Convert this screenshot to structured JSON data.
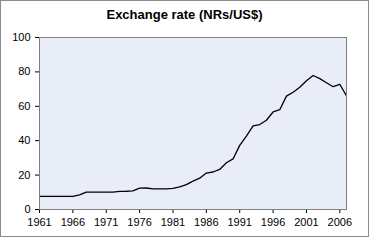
{
  "chart_data": {
    "type": "line",
    "title": "Exchange rate (NRs/US$)",
    "x": [
      1961,
      1962,
      1963,
      1964,
      1965,
      1966,
      1967,
      1968,
      1969,
      1970,
      1971,
      1972,
      1973,
      1974,
      1975,
      1976,
      1977,
      1978,
      1979,
      1980,
      1981,
      1982,
      1983,
      1984,
      1985,
      1986,
      1987,
      1988,
      1989,
      1990,
      1991,
      1992,
      1993,
      1994,
      1995,
      1996,
      1997,
      1998,
      1999,
      2000,
      2001,
      2002,
      2003,
      2004,
      2005,
      2006,
      2007
    ],
    "values": [
      7.6,
      7.6,
      7.6,
      7.6,
      7.6,
      7.6,
      8.5,
      10.1,
      10.1,
      10.1,
      10.1,
      10.1,
      10.5,
      10.6,
      10.8,
      12.4,
      12.5,
      12.0,
      12.0,
      12.0,
      12.3,
      13.2,
      14.5,
      16.5,
      18.2,
      21.2,
      21.8,
      23.3,
      27.2,
      29.4,
      37.3,
      42.7,
      48.6,
      49.4,
      51.9,
      56.7,
      58.0,
      65.9,
      68.2,
      71.1,
      74.9,
      77.9,
      76.1,
      73.7,
      71.4,
      72.8,
      66.0
    ],
    "color": "#000000",
    "xlim": [
      1961,
      2007
    ],
    "xticks": [
      1961,
      1966,
      1971,
      1976,
      1981,
      1986,
      1991,
      1996,
      2001,
      2006
    ],
    "ylim": [
      0,
      100
    ],
    "yticks": [
      0,
      20,
      40,
      60,
      80,
      100
    ],
    "grid": false
  }
}
